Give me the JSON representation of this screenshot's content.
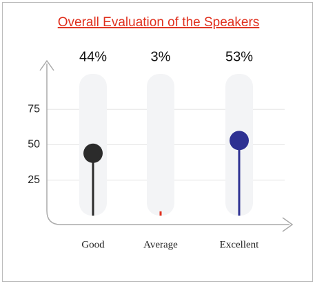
{
  "chart_data": {
    "type": "lollipop",
    "title": "Overall Evaluation of the Speakers",
    "categories": [
      "Good",
      "Average",
      "Excellent"
    ],
    "values": [
      44,
      3,
      53
    ],
    "value_labels": [
      "44%",
      "3%",
      "53%"
    ],
    "colors": [
      "#2b2b2b",
      "#e0301e",
      "#2e3192"
    ],
    "ylim": [
      0,
      100
    ],
    "yticks": [
      25,
      50,
      75
    ],
    "grid": true
  }
}
